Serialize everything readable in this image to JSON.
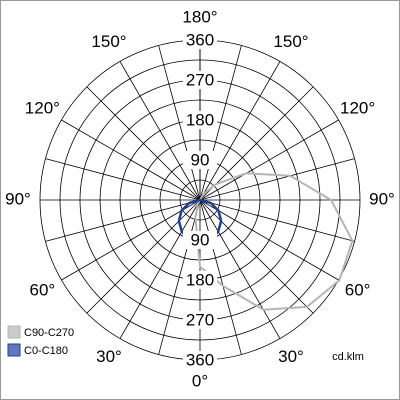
{
  "chart_data": {
    "type": "polar",
    "x": [
      -180,
      -165,
      -150,
      -135,
      -120,
      -105,
      -90,
      -75,
      -60,
      -45,
      -30,
      -15,
      0,
      15,
      30,
      45,
      60,
      75,
      90,
      105,
      120,
      135,
      150,
      165,
      180
    ],
    "series": [
      {
        "name": "C90-C270",
        "color": "#b4b4b4",
        "values": [
          0,
          0,
          0,
          0,
          0,
          0,
          0,
          0,
          0,
          0,
          10,
          40,
          150,
          200,
          285,
          340,
          362,
          355,
          295,
          210,
          120,
          50,
          15,
          0,
          0
        ]
      },
      {
        "name": "C0-C180",
        "color": "#1c3f9c",
        "values": [
          0,
          0,
          0,
          0,
          0,
          0,
          0,
          25,
          48,
          67,
          82,
          92,
          95,
          92,
          82,
          67,
          48,
          25,
          0,
          0,
          0,
          0,
          0,
          0,
          0
        ]
      }
    ],
    "rlim": [
      0,
      360
    ],
    "rticks": [
      90,
      180,
      270,
      360
    ],
    "rminorticks": [
      45,
      135,
      225,
      315
    ],
    "angle_ticks": [
      {
        "value": 0,
        "label": "0°"
      },
      {
        "value": 30,
        "label": "30°"
      },
      {
        "value": 60,
        "label": "60°"
      },
      {
        "value": 90,
        "label": "90°"
      },
      {
        "value": 120,
        "label": "120°"
      },
      {
        "value": 150,
        "label": "150°"
      },
      {
        "value": 180,
        "label": "180°"
      },
      {
        "value": -30,
        "label": "30°"
      },
      {
        "value": -60,
        "label": "60°"
      },
      {
        "value": -90,
        "label": "90°"
      },
      {
        "value": -120,
        "label": "120°"
      },
      {
        "value": -150,
        "label": "150°"
      }
    ],
    "unit": "cd.klm",
    "legend": "bottom-left"
  }
}
